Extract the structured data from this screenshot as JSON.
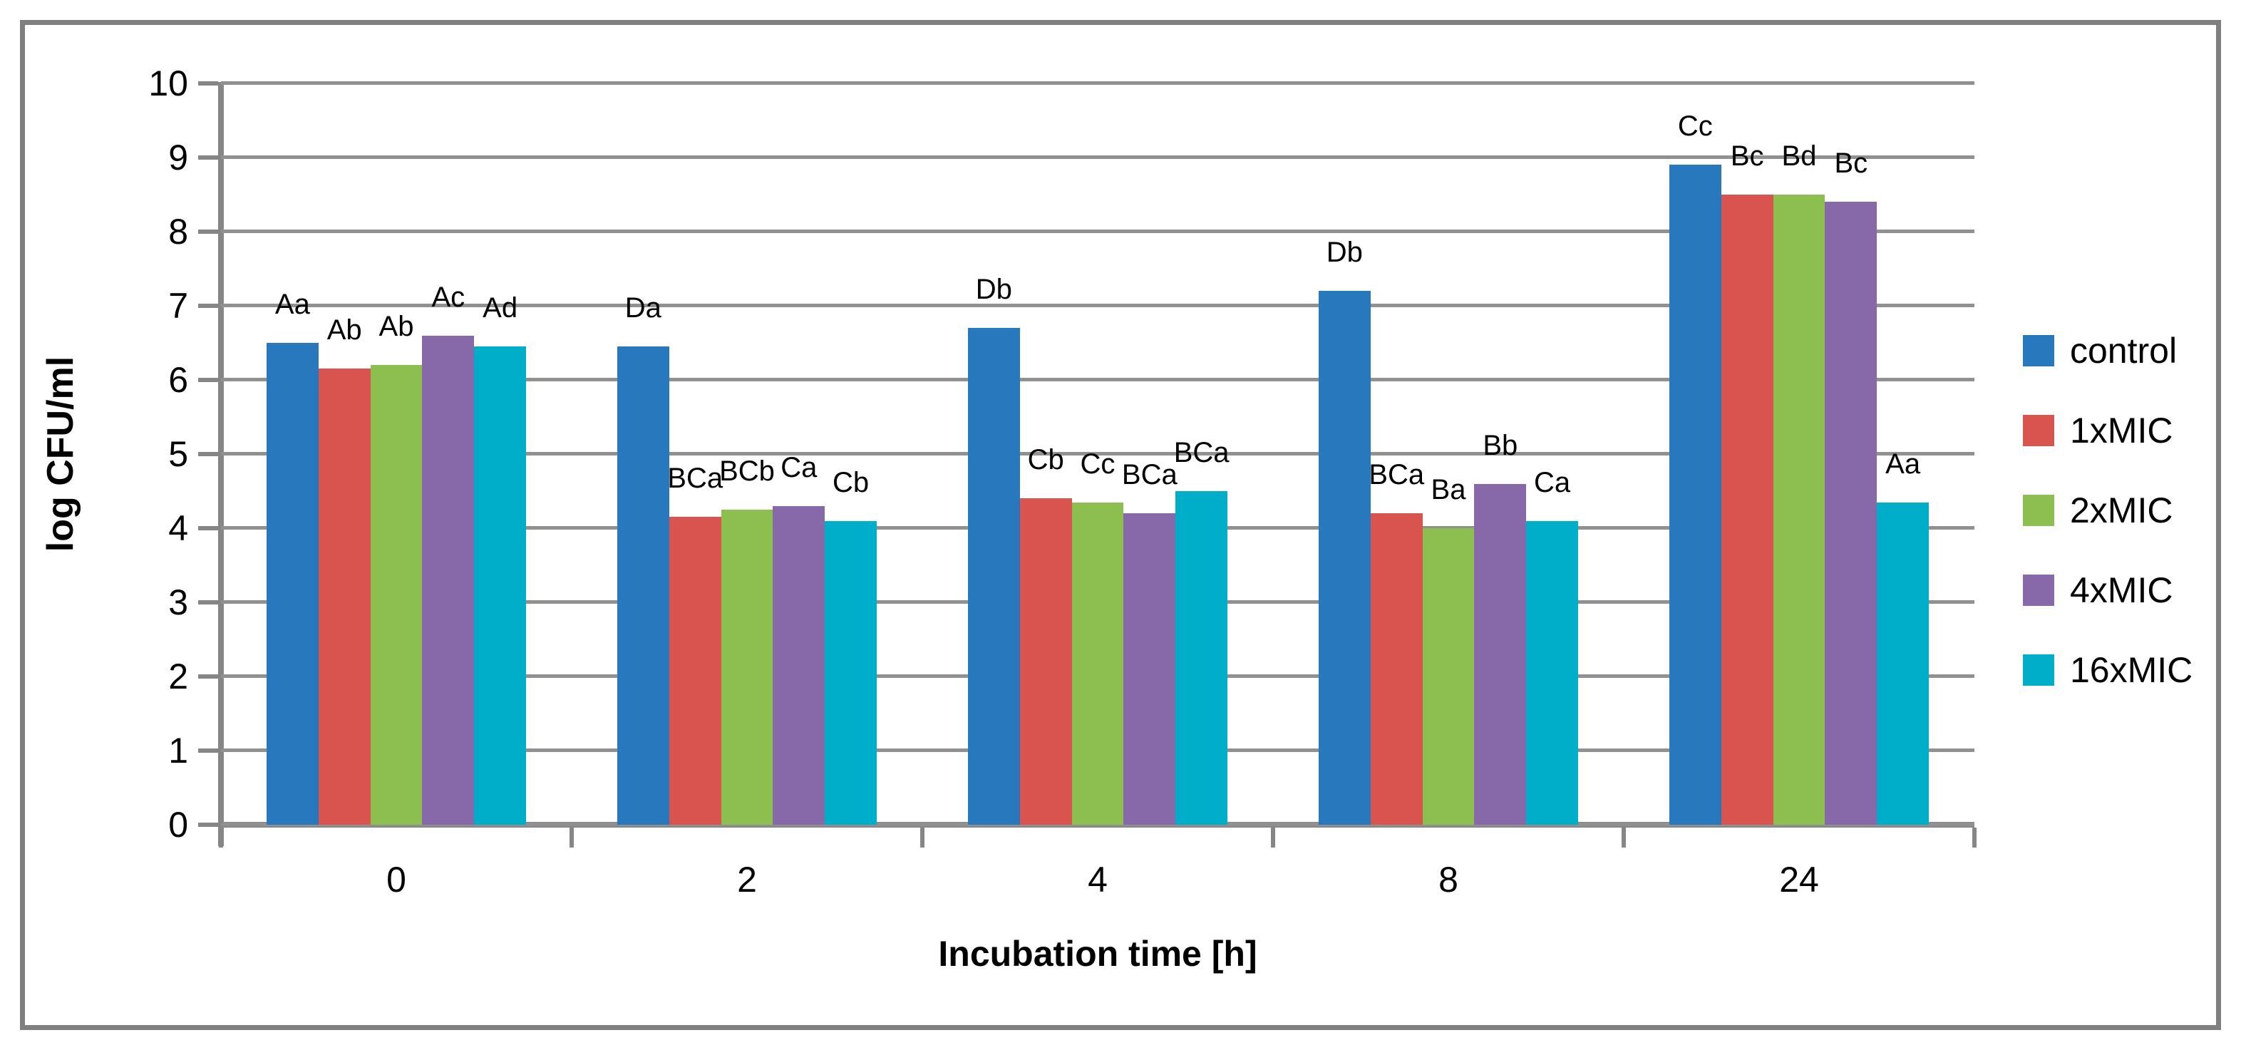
{
  "chart_data": {
    "type": "bar",
    "title": "",
    "xlabel": "Incubation time [h]",
    "ylabel": "log CFU/ml",
    "ylim": [
      0,
      10
    ],
    "yticks": [
      0,
      1,
      2,
      3,
      4,
      5,
      6,
      7,
      8,
      9,
      10
    ],
    "grid": true,
    "legend_position": "right",
    "categories": [
      "0",
      "2",
      "4",
      "8",
      "24"
    ],
    "series": [
      {
        "name": "control",
        "color": "#2878BE",
        "values": [
          6.5,
          6.45,
          6.7,
          7.2,
          8.9
        ],
        "bar_labels": [
          "Aa",
          "Da",
          "Db",
          "Db",
          "Cc"
        ]
      },
      {
        "name": "1xMIC",
        "color": "#D9534F",
        "values": [
          6.15,
          4.15,
          4.4,
          4.2,
          8.5
        ],
        "bar_labels": [
          "Ab",
          "BCa",
          "Cb",
          "BCa",
          "Bc"
        ]
      },
      {
        "name": "2xMIC",
        "color": "#8DBE50",
        "values": [
          6.2,
          4.25,
          4.35,
          4.0,
          8.5
        ],
        "bar_labels": [
          "Ab",
          "BCb",
          "Cc",
          "Ba",
          "Bd"
        ]
      },
      {
        "name": "4xMIC",
        "color": "#8768A8",
        "values": [
          6.6,
          4.3,
          4.2,
          4.6,
          8.4
        ],
        "bar_labels": [
          "Ac",
          "Ca",
          "BCa",
          "Bb",
          "Bc"
        ]
      },
      {
        "name": "16xMIC",
        "color": "#00AEC9",
        "values": [
          6.45,
          4.1,
          4.5,
          4.1,
          4.35
        ],
        "bar_labels": [
          "Ad",
          "Cb",
          "BCa",
          "Ca",
          "Aa"
        ]
      }
    ]
  },
  "style_colors": {
    "frame_border": "#7F7F7F",
    "gridline": "#919191",
    "axis": "#868686",
    "text": "#000000",
    "background": "#FFFFFF"
  }
}
